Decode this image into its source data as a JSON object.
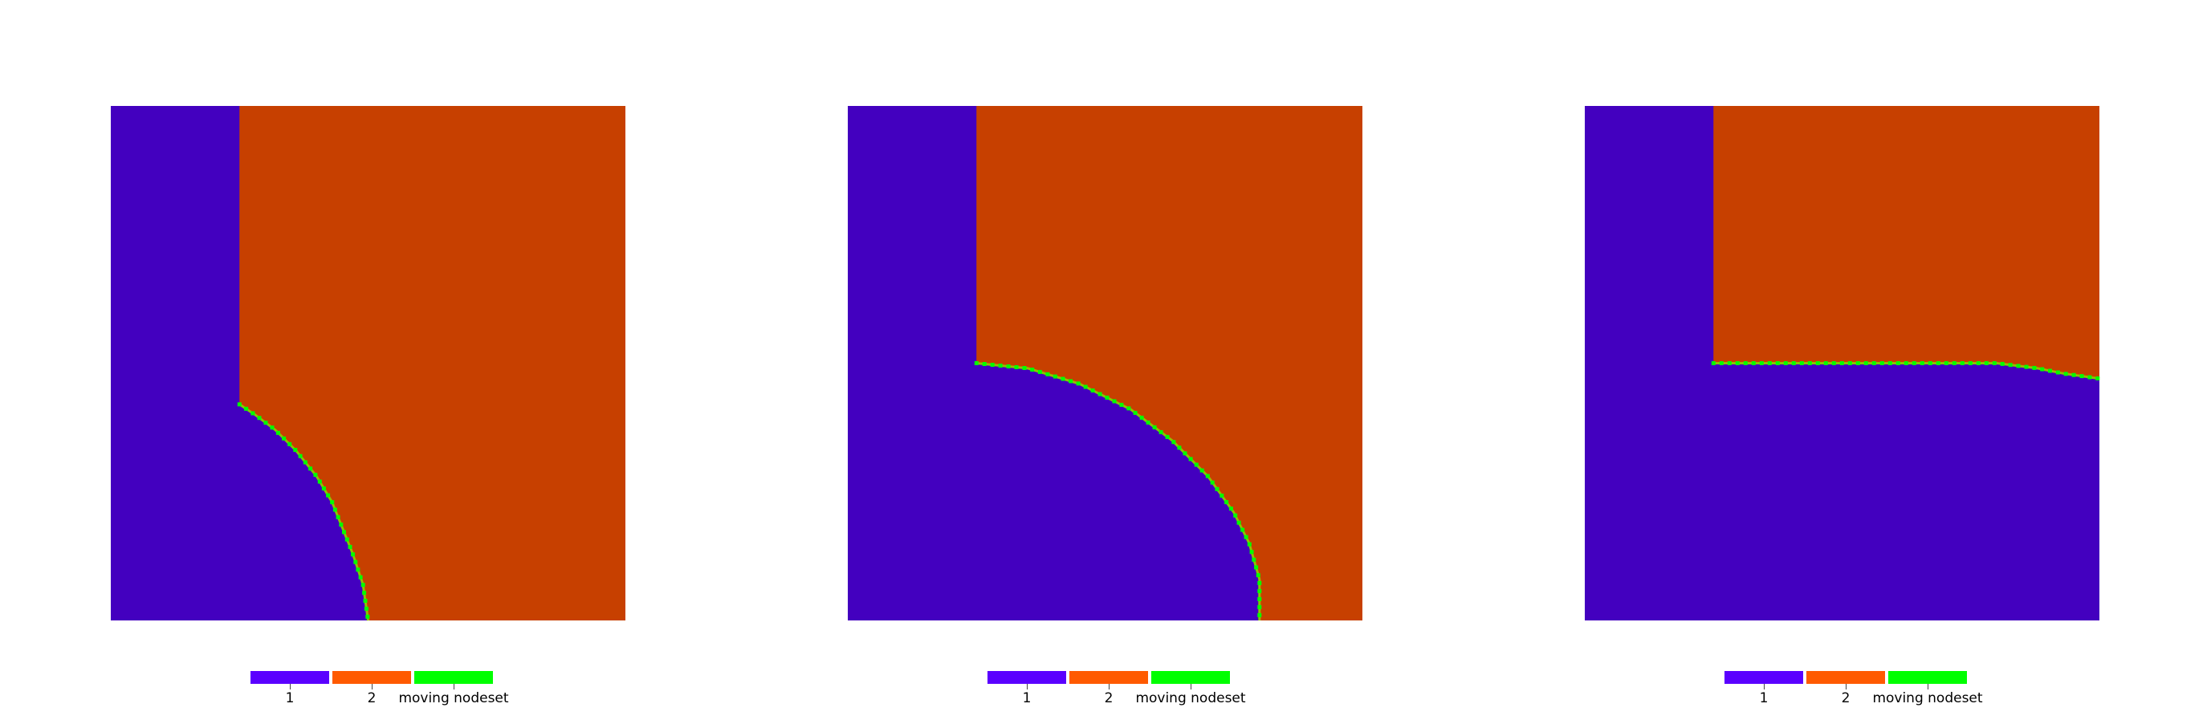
{
  "colors": {
    "region_1": "#4300bf",
    "region_2": "#c74000",
    "nodeset_line": "#8fbf00",
    "nodeset_dot": "#00ff00",
    "legend_1": "#5a00ff",
    "legend_2": "#ff5a00",
    "legend_nodeset": "#00ff00"
  },
  "legend": {
    "item_1": "1",
    "item_2": "2",
    "item_nodeset": "moving nodeset"
  },
  "panels": [
    {
      "interface": [
        [
          0.25,
          0.58
        ],
        [
          0.28,
          0.6
        ],
        [
          0.32,
          0.63
        ],
        [
          0.36,
          0.67
        ],
        [
          0.4,
          0.72
        ],
        [
          0.43,
          0.77
        ],
        [
          0.45,
          0.82
        ],
        [
          0.47,
          0.87
        ],
        [
          0.49,
          0.93
        ],
        [
          0.5,
          1.0
        ]
      ]
    },
    {
      "interface": [
        [
          0.25,
          0.5
        ],
        [
          0.35,
          0.51
        ],
        [
          0.45,
          0.54
        ],
        [
          0.55,
          0.59
        ],
        [
          0.63,
          0.65
        ],
        [
          0.7,
          0.72
        ],
        [
          0.75,
          0.79
        ],
        [
          0.78,
          0.85
        ],
        [
          0.8,
          0.92
        ],
        [
          0.8,
          1.0
        ]
      ]
    },
    {
      "interface": [
        [
          0.25,
          0.5
        ],
        [
          0.4,
          0.5
        ],
        [
          0.55,
          0.5
        ],
        [
          0.7,
          0.5
        ],
        [
          0.8,
          0.5
        ],
        [
          0.88,
          0.51
        ],
        [
          0.93,
          0.52
        ],
        [
          1.0,
          0.53
        ]
      ]
    }
  ]
}
